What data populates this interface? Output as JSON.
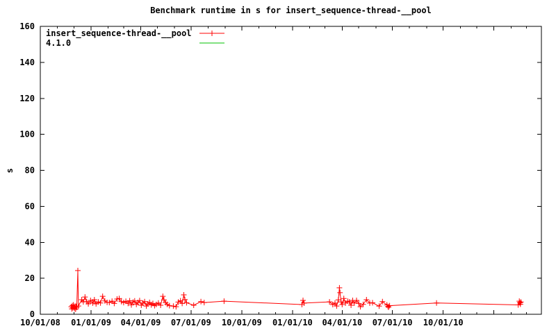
{
  "title": "Benchmark runtime in s for insert_sequence-thread-__pool",
  "colors": {
    "series1": "#ff0000",
    "series2": "#00c000",
    "axis": "#000000",
    "background": "#ffffff"
  },
  "legend": [
    {
      "label": "insert_sequence-thread-__pool",
      "color": "#ff0000",
      "marker": "plus"
    },
    {
      "label": "4.1.0",
      "color": "#00c000",
      "marker": "none"
    }
  ],
  "chart_data": {
    "type": "line",
    "title": "Benchmark runtime in s for insert_sequence-thread-__pool",
    "xlabel": "",
    "ylabel": "s",
    "ylim": [
      0,
      160
    ],
    "yticks": [
      0,
      20,
      40,
      60,
      80,
      100,
      120,
      140,
      160
    ],
    "xlim": [
      "2008-10-01",
      "2011-03-28"
    ],
    "xticks": [
      {
        "date": "2008-10-01",
        "label": "10/01/08"
      },
      {
        "date": "2009-01-01",
        "label": "01/01/09"
      },
      {
        "date": "2009-04-01",
        "label": "04/01/09"
      },
      {
        "date": "2009-07-01",
        "label": "07/01/09"
      },
      {
        "date": "2009-10-01",
        "label": "10/01/09"
      },
      {
        "date": "2010-01-01",
        "label": "01/01/10"
      },
      {
        "date": "2010-04-01",
        "label": "04/01/10"
      },
      {
        "date": "2010-07-01",
        "label": "07/01/10"
      },
      {
        "date": "2010-10-01",
        "label": "10/01/10"
      }
    ],
    "minor_ticks": "monthly",
    "grid": false,
    "legend_position": "top-left-inside",
    "series": [
      {
        "name": "insert_sequence-thread-__pool",
        "color": "#ff0000",
        "marker": "plus",
        "points": [
          [
            "2008-11-26",
            4.2
          ],
          [
            "2008-11-27",
            3.0
          ],
          [
            "2008-11-28",
            4.8
          ],
          [
            "2008-11-29",
            3.6
          ],
          [
            "2008-11-30",
            5.2
          ],
          [
            "2008-12-01",
            4.0
          ],
          [
            "2008-12-02",
            3.2
          ],
          [
            "2008-12-03",
            4.6
          ],
          [
            "2008-12-04",
            2.8
          ],
          [
            "2008-12-05",
            4.4
          ],
          [
            "2008-12-06",
            3.8
          ],
          [
            "2008-12-08",
            24.3
          ],
          [
            "2008-12-09",
            4.6
          ],
          [
            "2008-12-15",
            8.1
          ],
          [
            "2008-12-18",
            6.9
          ],
          [
            "2008-12-21",
            9.6
          ],
          [
            "2008-12-24",
            7.0
          ],
          [
            "2008-12-27",
            5.8
          ],
          [
            "2008-12-31",
            7.7
          ],
          [
            "2009-01-04",
            6.2
          ],
          [
            "2009-01-07",
            8.1
          ],
          [
            "2009-01-10",
            5.8
          ],
          [
            "2009-01-14",
            6.9
          ],
          [
            "2009-01-18",
            6.3
          ],
          [
            "2009-01-22",
            10.0
          ],
          [
            "2009-01-26",
            7.4
          ],
          [
            "2009-01-30",
            6.6
          ],
          [
            "2009-02-03",
            6.5
          ],
          [
            "2009-02-08",
            7.3
          ],
          [
            "2009-02-12",
            6.0
          ],
          [
            "2009-02-17",
            8.5
          ],
          [
            "2009-02-21",
            8.8
          ],
          [
            "2009-02-25",
            7.0
          ],
          [
            "2009-03-01",
            6.5
          ],
          [
            "2009-03-05",
            7.2
          ],
          [
            "2009-03-09",
            6.0
          ],
          [
            "2009-03-12",
            7.5
          ],
          [
            "2009-03-15",
            5.2
          ],
          [
            "2009-03-18",
            6.8
          ],
          [
            "2009-03-21",
            7.4
          ],
          [
            "2009-03-24",
            5.5
          ],
          [
            "2009-03-27",
            6.5
          ],
          [
            "2009-03-30",
            7.6
          ],
          [
            "2009-04-02",
            5.0
          ],
          [
            "2009-04-05",
            6.2
          ],
          [
            "2009-04-08",
            7.0
          ],
          [
            "2009-04-11",
            4.6
          ],
          [
            "2009-04-14",
            5.8
          ],
          [
            "2009-04-17",
            6.6
          ],
          [
            "2009-04-20",
            5.2
          ],
          [
            "2009-04-23",
            6.0
          ],
          [
            "2009-04-26",
            4.8
          ],
          [
            "2009-04-29",
            5.5
          ],
          [
            "2009-05-03",
            6.3
          ],
          [
            "2009-05-07",
            5.0
          ],
          [
            "2009-05-11",
            10.0
          ],
          [
            "2009-05-13",
            8.0
          ],
          [
            "2009-05-16",
            6.5
          ],
          [
            "2009-05-19",
            5.5
          ],
          [
            "2009-05-23",
            4.8
          ],
          [
            "2009-05-30",
            4.5
          ],
          [
            "2009-06-04",
            4.2
          ],
          [
            "2009-06-08",
            6.8
          ],
          [
            "2009-06-12",
            7.5
          ],
          [
            "2009-06-15",
            6.0
          ],
          [
            "2009-06-18",
            10.8
          ],
          [
            "2009-06-20",
            8.2
          ],
          [
            "2009-06-23",
            6.4
          ],
          [
            "2009-07-06",
            5.0
          ],
          [
            "2009-07-19",
            7.0
          ],
          [
            "2009-07-25",
            6.5
          ],
          [
            "2009-08-30",
            7.3
          ],
          [
            "2010-01-18",
            5.4
          ],
          [
            "2010-01-20",
            7.7
          ],
          [
            "2010-01-22",
            6.2
          ],
          [
            "2010-03-09",
            6.9
          ],
          [
            "2010-03-15",
            5.4
          ],
          [
            "2010-03-19",
            6.2
          ],
          [
            "2010-03-22",
            4.6
          ],
          [
            "2010-03-25",
            8.0
          ],
          [
            "2010-03-27",
            14.7
          ],
          [
            "2010-03-28",
            12.0
          ],
          [
            "2010-03-30",
            6.9
          ],
          [
            "2010-04-01",
            5.4
          ],
          [
            "2010-04-04",
            8.8
          ],
          [
            "2010-04-07",
            6.2
          ],
          [
            "2010-04-11",
            7.3
          ],
          [
            "2010-04-14",
            6.9
          ],
          [
            "2010-04-17",
            5.0
          ],
          [
            "2010-04-20",
            7.7
          ],
          [
            "2010-04-23",
            6.2
          ],
          [
            "2010-04-27",
            7.7
          ],
          [
            "2010-05-01",
            6.0
          ],
          [
            "2010-05-04",
            4.2
          ],
          [
            "2010-05-09",
            5.5
          ],
          [
            "2010-05-15",
            8.1
          ],
          [
            "2010-05-21",
            6.2
          ],
          [
            "2010-05-26",
            6.4
          ],
          [
            "2010-06-07",
            4.5
          ],
          [
            "2010-06-13",
            7.0
          ],
          [
            "2010-06-21",
            5.2
          ],
          [
            "2010-06-23",
            4.4
          ],
          [
            "2010-06-24",
            3.9
          ],
          [
            "2010-06-26",
            4.8
          ],
          [
            "2010-09-19",
            6.3
          ],
          [
            "2011-02-14",
            5.2
          ],
          [
            "2011-02-16",
            7.3
          ],
          [
            "2011-02-17",
            6.4
          ],
          [
            "2011-02-18",
            5.6
          ],
          [
            "2011-02-19",
            6.8
          ]
        ]
      },
      {
        "name": "4.1.0",
        "color": "#00c000",
        "marker": "none",
        "points": []
      }
    ]
  }
}
